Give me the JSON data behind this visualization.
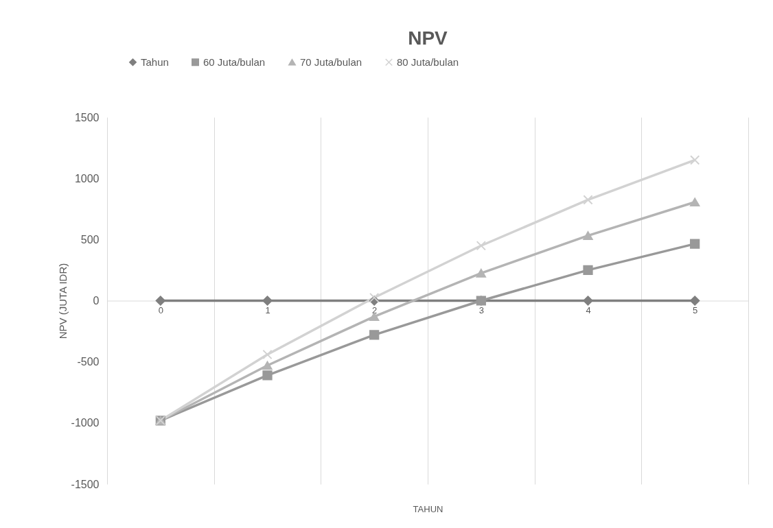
{
  "chart_data": {
    "type": "line",
    "title": "NPV",
    "xlabel": "TAHUN",
    "ylabel": "NPV (JUTA IDR)",
    "categories": [
      "0",
      "1",
      "2",
      "3",
      "4",
      "5"
    ],
    "series": [
      {
        "name": "Tahun",
        "color": "#7f7f7f",
        "marker": "diamond",
        "values": [
          0,
          0,
          0,
          0,
          0,
          0
        ]
      },
      {
        "name": "60 Juta/bulan",
        "color": "#999999",
        "marker": "square",
        "values": [
          -980,
          -610,
          -280,
          0,
          250,
          465
        ]
      },
      {
        "name": "70 Juta/bulan",
        "color": "#b4b4b4",
        "marker": "triangle",
        "values": [
          -980,
          -530,
          -130,
          225,
          532,
          806
        ]
      },
      {
        "name": "80 Juta/bulan",
        "color": "#d2d2d2",
        "marker": "cross",
        "values": [
          -980,
          -440,
          25,
          450,
          825,
          1150
        ]
      }
    ],
    "ylim": [
      -1500,
      1500
    ],
    "yticks": [
      -1500,
      -1000,
      -500,
      0,
      500,
      1000,
      1500
    ],
    "grid": "x",
    "legend": "top",
    "line_style": "solid"
  }
}
